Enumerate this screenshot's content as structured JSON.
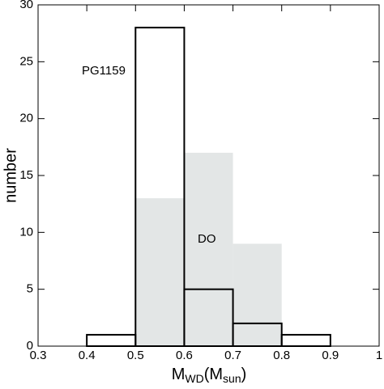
{
  "chart_data": {
    "type": "histogram",
    "x_label": [
      "M",
      "WD",
      "(M",
      "sun",
      ")"
    ],
    "y_label": "number",
    "bins": [
      0.4,
      0.5,
      0.6,
      0.7,
      0.8,
      0.9
    ],
    "series": [
      {
        "name": "DO",
        "color": "#e3e6e6",
        "values": [
          0,
          13,
          17,
          9,
          0
        ]
      },
      {
        "name": "PG1159",
        "color": "#000000",
        "values": [
          1,
          28,
          5,
          2,
          1
        ]
      }
    ],
    "xlim": [
      0.3,
      1
    ],
    "xticks": [
      0.3,
      0.4,
      0.5,
      0.6,
      0.7,
      0.8,
      0.9,
      1
    ],
    "ylim": [
      0,
      30
    ],
    "yticks": [
      0,
      5,
      10,
      15,
      20,
      25,
      30
    ]
  }
}
